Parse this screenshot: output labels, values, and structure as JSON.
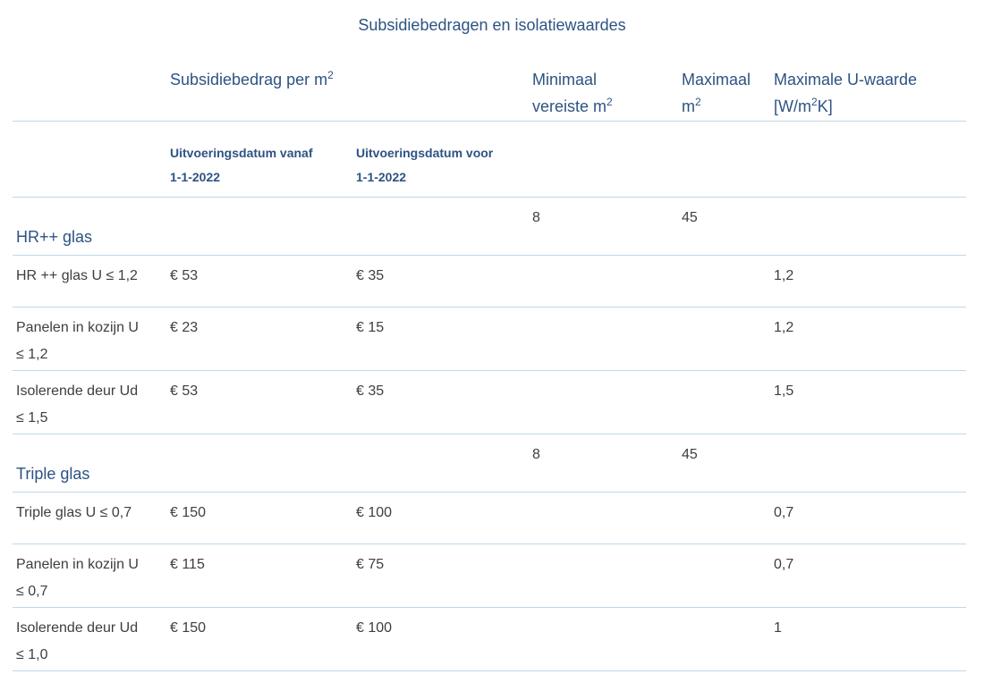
{
  "colors": {
    "heading_blue": "#2d5383",
    "body_text": "#3e3e3e",
    "divider_blue": "#bdd8e8"
  },
  "page": {
    "title": "Subsidiebedragen en isolatiewaardes"
  },
  "table": {
    "headers": {
      "subsidie": {
        "pre": "Subsidiebedrag per m",
        "sup": "2"
      },
      "minimaal": {
        "line1": "Minimaal",
        "line2_pre": "vereiste m",
        "line2_sup": "2"
      },
      "maximaal": {
        "line1": "Maximaal",
        "line2_pre": "m",
        "line2_sup": "2"
      },
      "u_waarde": {
        "line1": "Maximale U-waarde",
        "line2_pre": "[W/m",
        "line2_sup": "2",
        "line2_post": "K]"
      }
    },
    "subheaders": {
      "vanaf": {
        "line1": "Uitvoeringsdatum vanaf",
        "line2": "1-1-2022"
      },
      "voor": {
        "line1": "Uitvoeringsdatum voor",
        "line2": "1-1-2022"
      }
    },
    "sections": [
      {
        "name": "HR++ glas",
        "minimaal_m2": "8",
        "maximaal_m2": "45",
        "rows": [
          {
            "label_line1": "HR ++ glas U ≤ 1,2",
            "label_line2": "",
            "vanaf": "€ 53",
            "voor": "€ 35",
            "max_u_waarde": "1,2"
          },
          {
            "label_line1": "Panelen in kozijn U",
            "label_line2": "≤ 1,2",
            "vanaf": "€ 23",
            "voor": "€ 15",
            "max_u_waarde": "1,2"
          },
          {
            "label_line1": "Isolerende deur Ud",
            "label_line2": "≤ 1,5",
            "vanaf": "€ 53",
            "voor": "€ 35",
            "max_u_waarde": "1,5"
          }
        ]
      },
      {
        "name": "Triple glas",
        "minimaal_m2": "8",
        "maximaal_m2": "45",
        "rows": [
          {
            "label_line1": "Triple glas U ≤ 0,7",
            "label_line2": "",
            "vanaf": "€ 150",
            "voor": "€ 100",
            "max_u_waarde": "0,7"
          },
          {
            "label_line1": "Panelen in kozijn U",
            "label_line2": "≤ 0,7",
            "vanaf": "€ 115",
            "voor": "€ 75",
            "max_u_waarde": "0,7"
          },
          {
            "label_line1": "Isolerende deur Ud",
            "label_line2": "≤ 1,0",
            "vanaf": "€ 150",
            "voor": "€ 100",
            "max_u_waarde": "1"
          }
        ]
      }
    ]
  }
}
